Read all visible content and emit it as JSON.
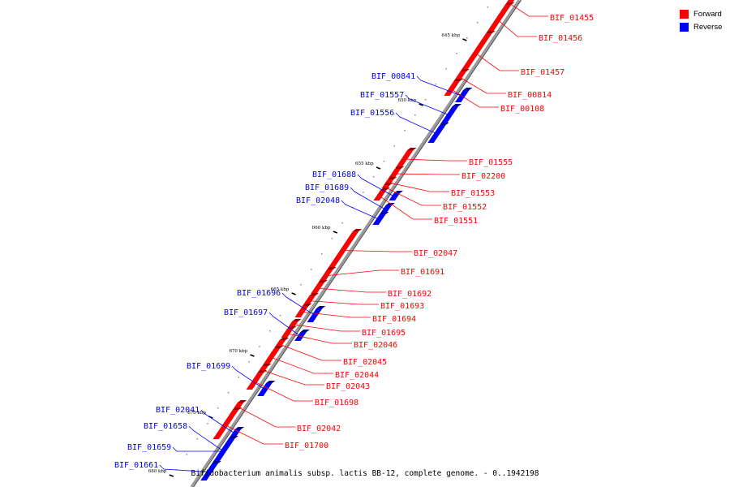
{
  "legend": [
    {
      "label": "Forward",
      "color": "#ff0000"
    },
    {
      "label": "Reverse",
      "color": "#0000ff"
    }
  ],
  "caption": "Bifidobacterium animalis subsp. lactis BB-12, complete genome. - 0..1942198",
  "colors": {
    "forward": "#ff0000",
    "reverse": "#0000ff",
    "backbone": "#9a9a9a"
  },
  "ticks": [
    "645 kbp",
    "650 kbp",
    "655 kbp",
    "660 kbp",
    "665 kbp",
    "670 kbp",
    "675 kbp",
    "680 kbp"
  ],
  "forward_genes": [
    "BIF_01455",
    "BIF_01456",
    "BIF_01457",
    "BIF_00814",
    "BIF_00108",
    "BIF_01555",
    "BIF_02200",
    "BIF_01553",
    "BIF_01552",
    "BIF_01551",
    "BIF_02047",
    "BIF_01691",
    "BIF_01692",
    "BIF_01693",
    "BIF_01694",
    "BIF_01695",
    "BIF_02046",
    "BIF_02045",
    "BIF_02044",
    "BIF_02043",
    "BIF_01698",
    "BIF_02042",
    "BIF_01700"
  ],
  "reverse_genes": [
    "BIF_00841",
    "BIF_01557",
    "BIF_01556",
    "BIF_01688",
    "BIF_01689",
    "BIF_02048",
    "BIF_01696",
    "BIF_01697",
    "BIF_01699",
    "BIF_02041",
    "BIF_01658",
    "BIF_01659",
    "BIF_01661"
  ]
}
